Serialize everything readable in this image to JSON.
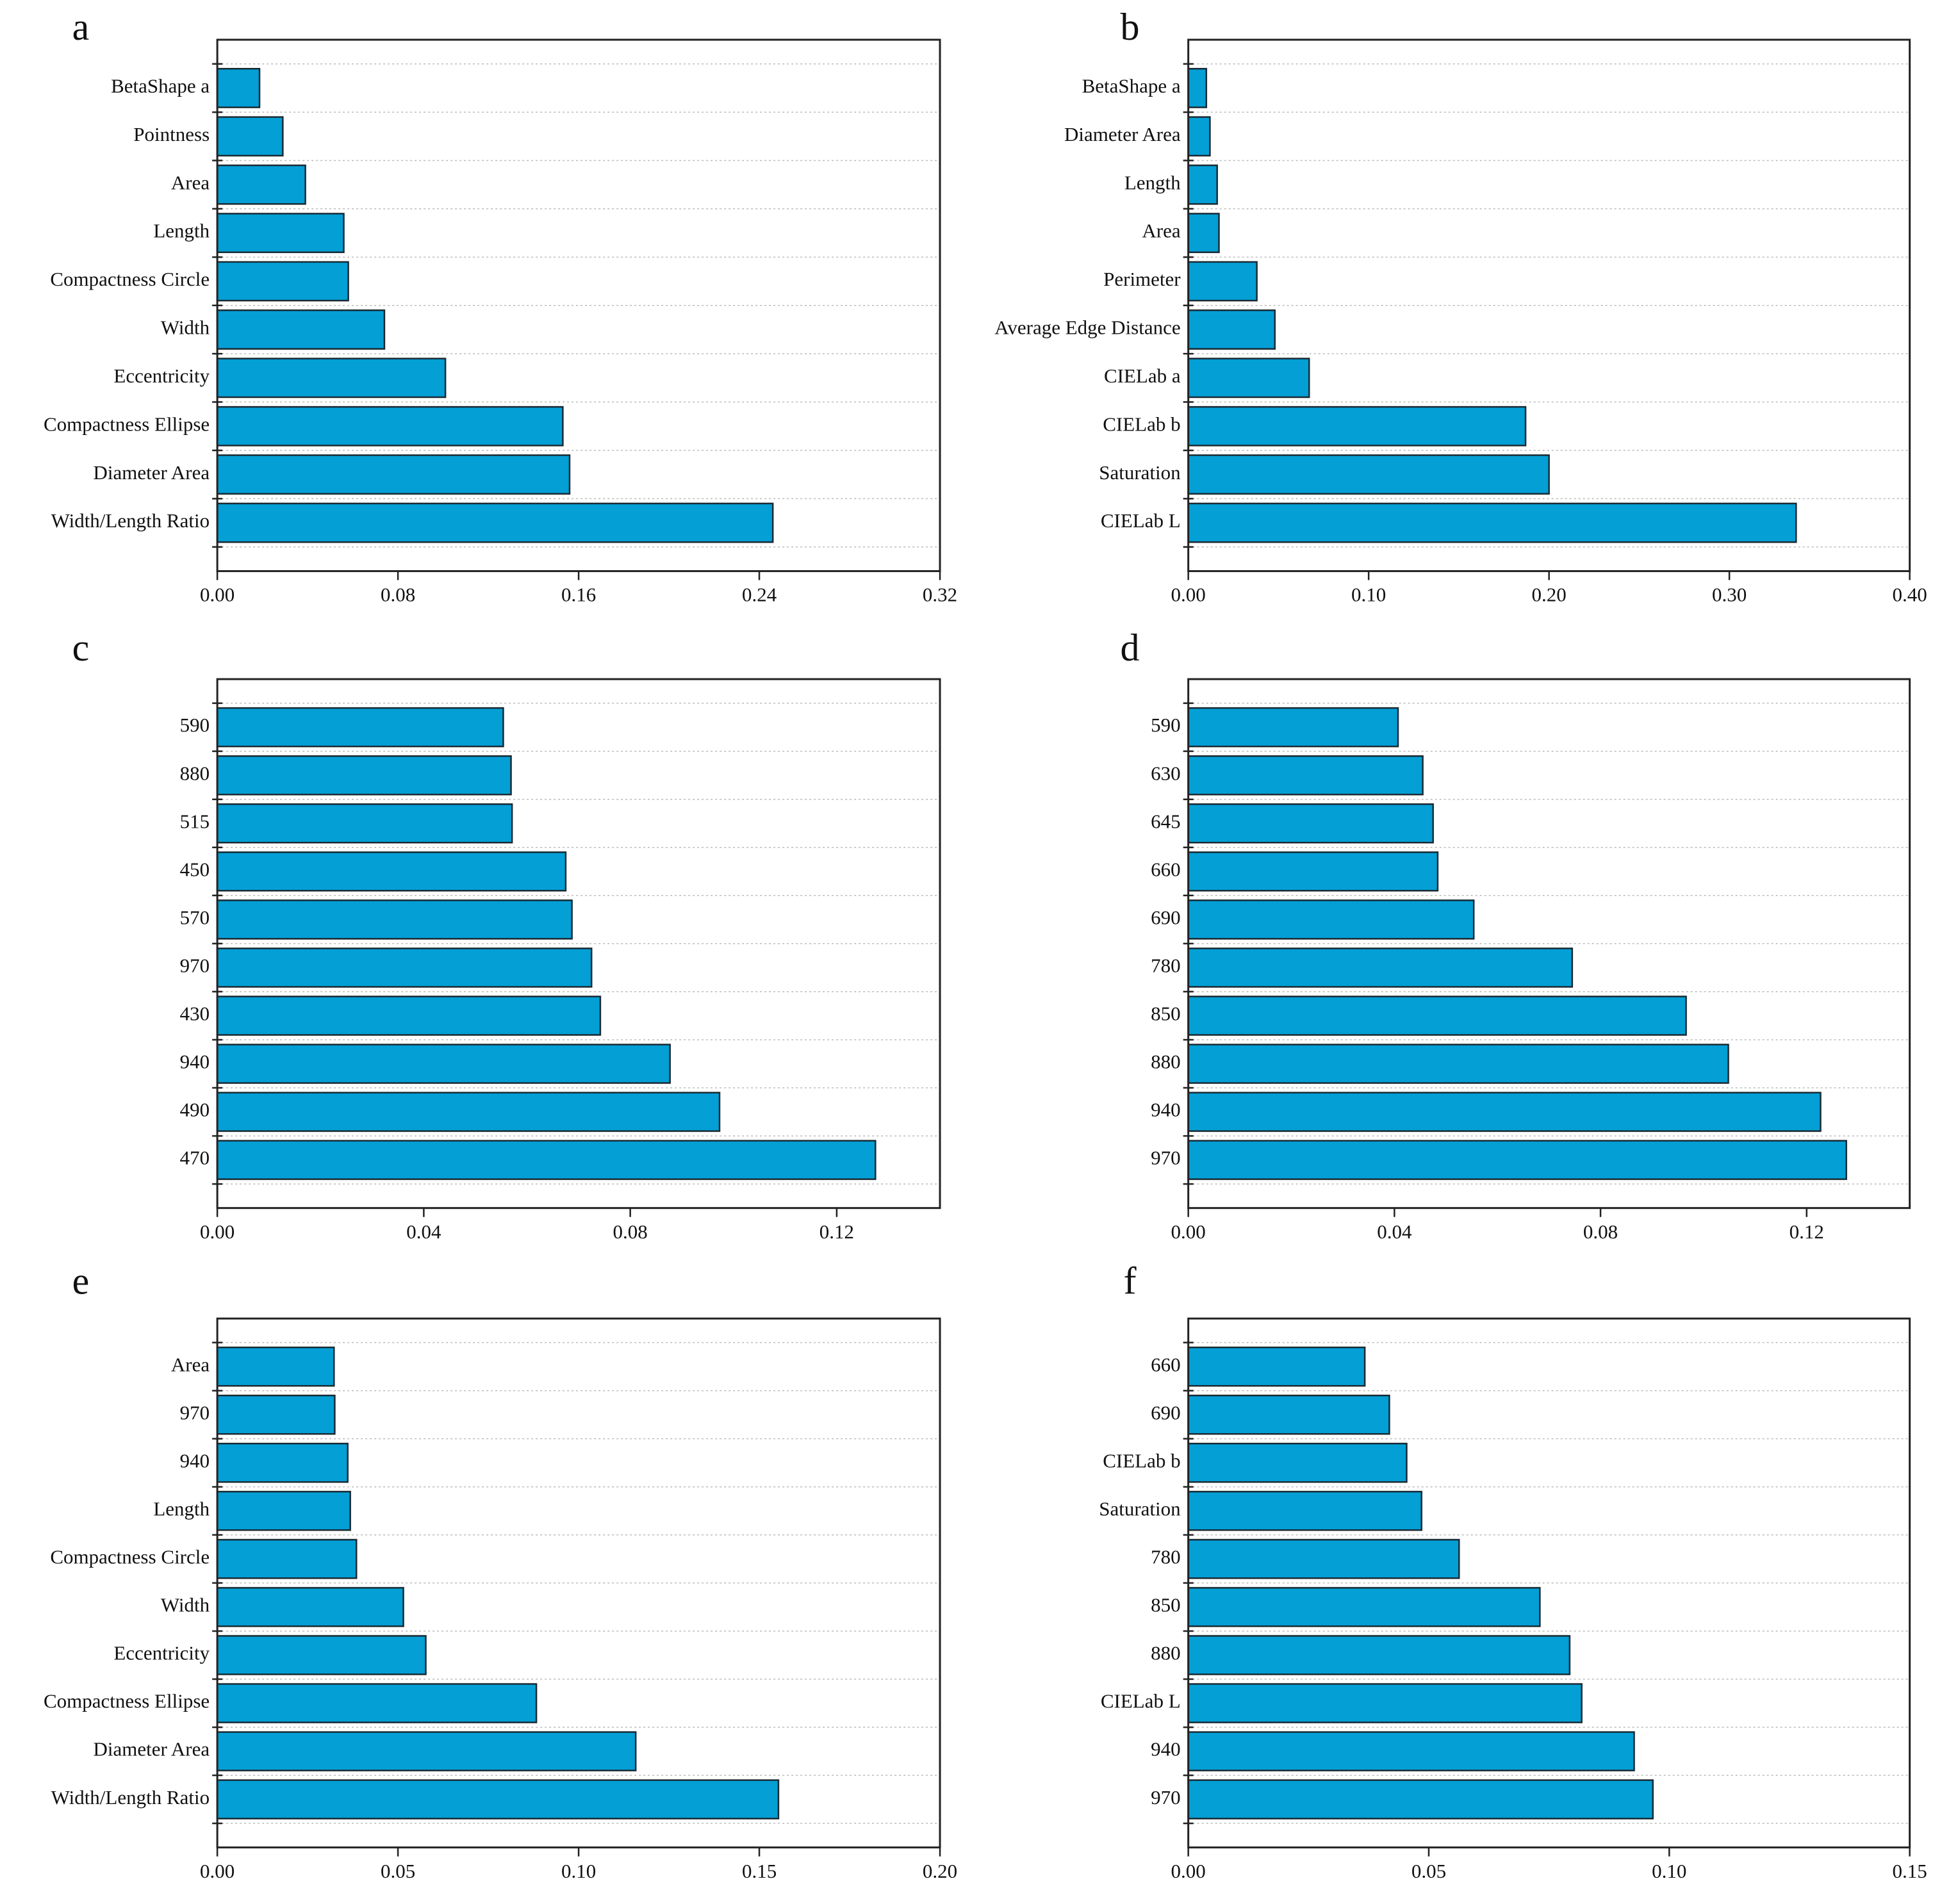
{
  "chart_data": [
    {
      "type": "bar",
      "orientation": "horizontal",
      "title": "a",
      "color": "#039fd5",
      "grid": true,
      "categories": [
        "BetaShape a",
        "Pointness",
        "Area",
        "Length",
        "Compactness Circle",
        "Width",
        "Eccentricity",
        "Compactness Ellipse",
        "Diameter Area",
        "Width/Length Ratio"
      ],
      "values": [
        0.0187,
        0.029,
        0.039,
        0.056,
        0.058,
        0.074,
        0.101,
        0.153,
        0.156,
        0.246
      ],
      "xlim": [
        0,
        0.32
      ],
      "xticks": [
        {
          "value": 0,
          "label": "0.00"
        },
        {
          "value": 0.08,
          "label": "0.08"
        },
        {
          "value": 0.16,
          "label": "0.16"
        },
        {
          "value": 0.24,
          "label": "0.24"
        },
        {
          "value": 0.32,
          "label": "0.32"
        }
      ]
    },
    {
      "type": "bar",
      "orientation": "horizontal",
      "title": "b",
      "color": "#039fd5",
      "grid": true,
      "categories": [
        "BetaShape a",
        "Diameter Area",
        "Length",
        "Area",
        "Perimeter",
        "Average Edge Distance",
        "CIELab a",
        "CIELab b",
        "Saturation",
        "CIELab L"
      ],
      "values": [
        0.01,
        0.012,
        0.016,
        0.017,
        0.038,
        0.048,
        0.067,
        0.187,
        0.2,
        0.337
      ],
      "xlim": [
        0,
        0.4
      ],
      "xticks": [
        {
          "value": 0,
          "label": "0.00"
        },
        {
          "value": 0.1,
          "label": "0.10"
        },
        {
          "value": 0.2,
          "label": "0.20"
        },
        {
          "value": 0.3,
          "label": "0.30"
        },
        {
          "value": 0.4,
          "label": "0.40"
        }
      ]
    },
    {
      "type": "bar",
      "orientation": "horizontal",
      "title": "c",
      "color": "#039fd5",
      "grid": true,
      "categories": [
        "590",
        "880",
        "515",
        "450",
        "570",
        "970",
        "430",
        "940",
        "490",
        "470"
      ],
      "values": [
        0.0554,
        0.0569,
        0.0571,
        0.0675,
        0.0687,
        0.0725,
        0.0742,
        0.0877,
        0.0973,
        0.1275
      ],
      "xlim": [
        0,
        0.14
      ],
      "xticks": [
        {
          "value": 0,
          "label": "0.00"
        },
        {
          "value": 0.04,
          "label": "0.04"
        },
        {
          "value": 0.08,
          "label": "0.08"
        },
        {
          "value": 0.12,
          "label": "0.12"
        }
      ]
    },
    {
      "type": "bar",
      "orientation": "horizontal",
      "title": "d",
      "color": "#039fd5",
      "grid": true,
      "categories": [
        "590",
        "630",
        "645",
        "660",
        "690",
        "780",
        "850",
        "880",
        "940",
        "970"
      ],
      "values": [
        0.0407,
        0.0455,
        0.0475,
        0.0484,
        0.0554,
        0.0745,
        0.0966,
        0.1048,
        0.1227,
        0.1277
      ],
      "xlim": [
        0,
        0.14
      ],
      "xticks": [
        {
          "value": 0,
          "label": "0.00"
        },
        {
          "value": 0.04,
          "label": "0.04"
        },
        {
          "value": 0.08,
          "label": "0.08"
        },
        {
          "value": 0.12,
          "label": "0.12"
        }
      ]
    },
    {
      "type": "bar",
      "orientation": "horizontal",
      "title": "e",
      "color": "#039fd5",
      "grid": true,
      "categories": [
        "Area",
        "970",
        "940",
        "Length",
        "Compactness Circle",
        "Width",
        "Eccentricity",
        "Compactness Ellipse",
        "Diameter Area",
        "Width/Length Ratio"
      ],
      "values": [
        0.0323,
        0.0325,
        0.0361,
        0.0368,
        0.0385,
        0.0515,
        0.0577,
        0.0883,
        0.1158,
        0.1553
      ],
      "xlim": [
        0,
        0.2
      ],
      "xticks": [
        {
          "value": 0,
          "label": "0.00"
        },
        {
          "value": 0.05,
          "label": "0.05"
        },
        {
          "value": 0.1,
          "label": "0.10"
        },
        {
          "value": 0.15,
          "label": "0.15"
        },
        {
          "value": 0.2,
          "label": "0.20"
        }
      ]
    },
    {
      "type": "bar",
      "orientation": "horizontal",
      "title": "f",
      "color": "#039fd5",
      "grid": true,
      "categories": [
        "660",
        "690",
        "CIELab b",
        "Saturation",
        "780",
        "850",
        "880",
        "CIELab L",
        "940",
        "970"
      ],
      "values": [
        0.0367,
        0.0418,
        0.0454,
        0.0485,
        0.0563,
        0.0731,
        0.0793,
        0.0818,
        0.0927,
        0.0966
      ],
      "xlim": [
        0,
        0.15
      ],
      "xticks": [
        {
          "value": 0,
          "label": "0.00"
        },
        {
          "value": 0.05,
          "label": "0.05"
        },
        {
          "value": 0.1,
          "label": "0.10"
        },
        {
          "value": 0.15,
          "label": "0.15"
        }
      ]
    }
  ]
}
